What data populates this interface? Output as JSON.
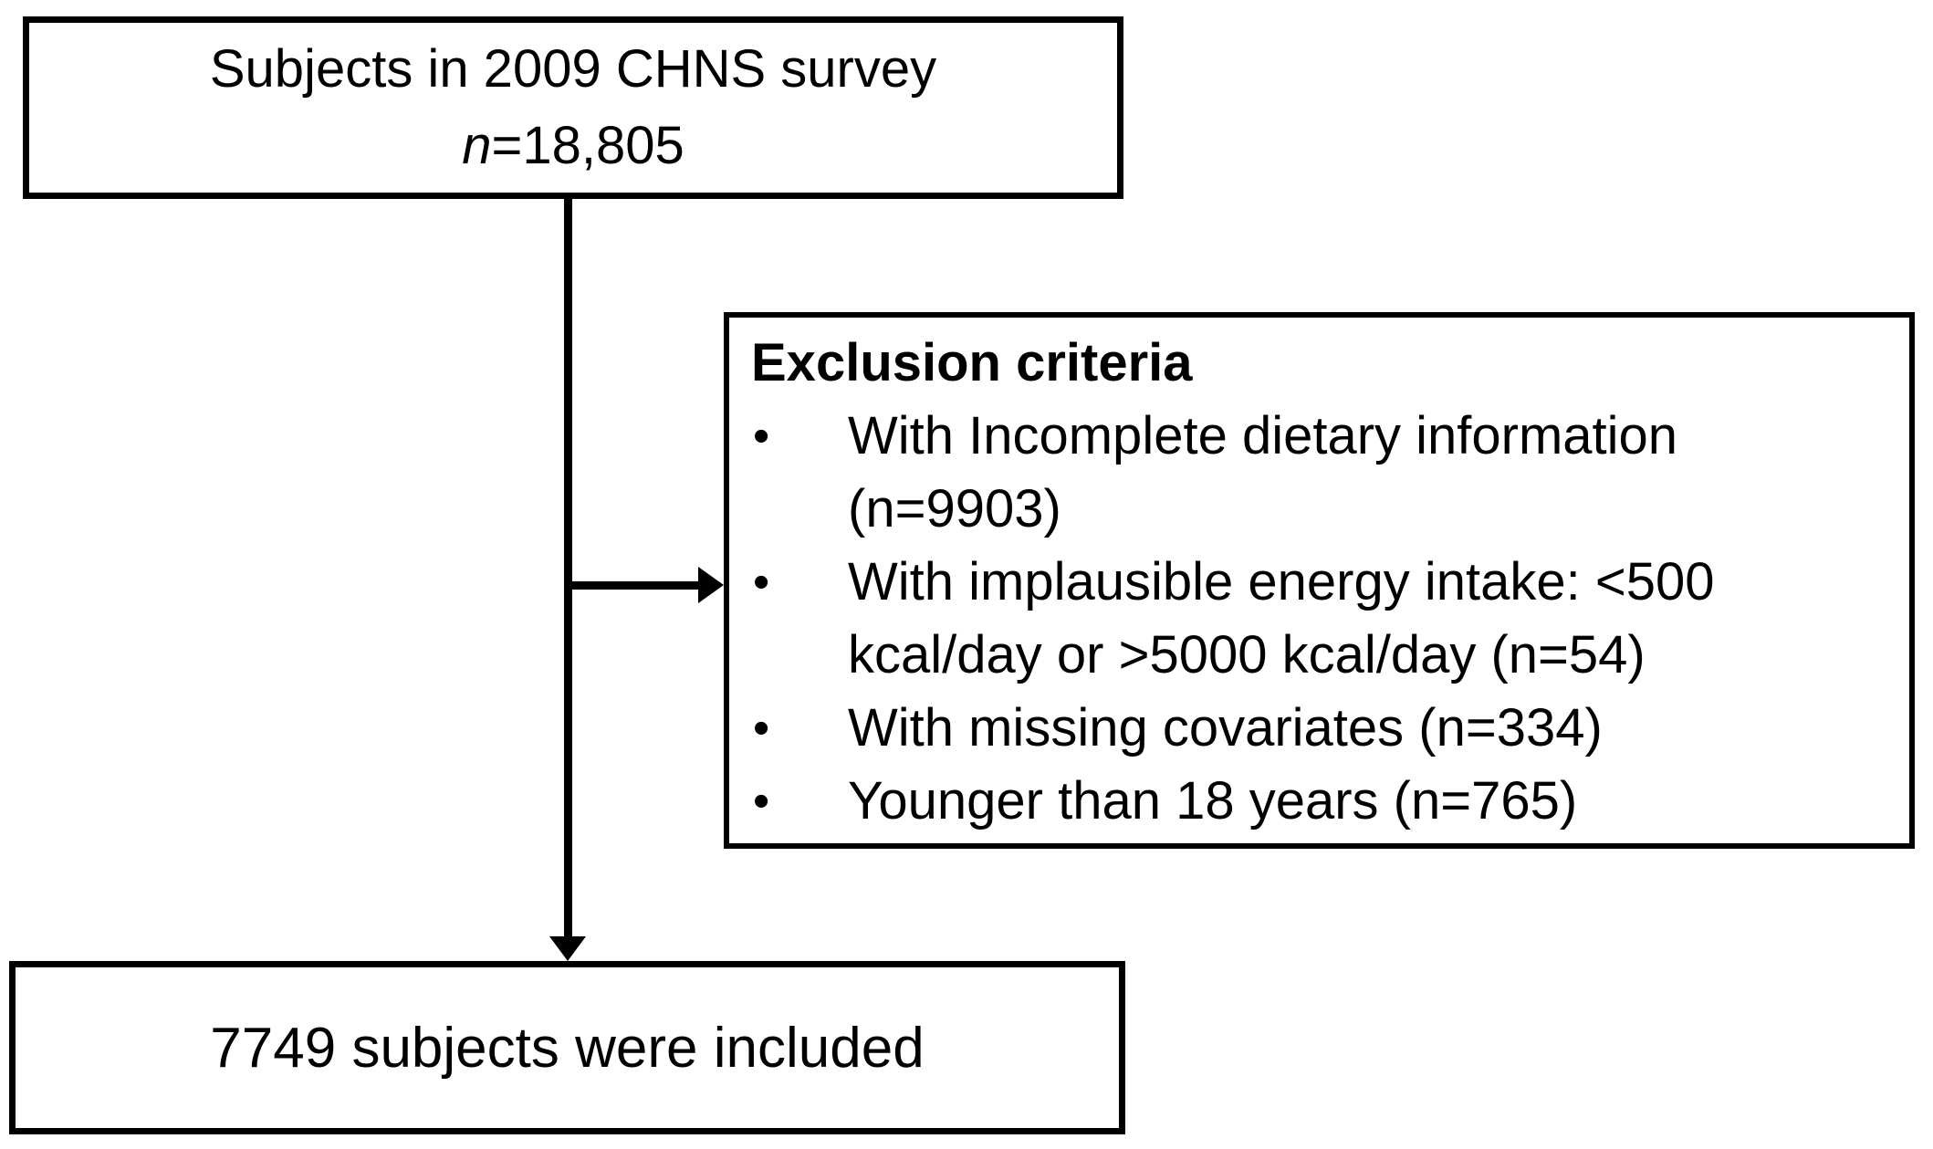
{
  "flowchart": {
    "top_box": {
      "line1": "Subjects in 2009 CHNS survey",
      "n_symbol": "n",
      "n_rest": "=18,805"
    },
    "exclusion_box": {
      "title": "Exclusion criteria",
      "bullet_char": "•",
      "items": [
        "With Incomplete dietary information (n=9903)",
        "With implausible energy intake: <500 kcal/day or >5000 kcal/day (n=54)",
        "With missing covariates (n=334)",
        "Younger than 18 years (n=765)"
      ]
    },
    "bottom_box": {
      "text": "7749 subjects were included"
    },
    "colors": {
      "border": "#000000",
      "text": "#000000",
      "background": "#ffffff"
    }
  }
}
